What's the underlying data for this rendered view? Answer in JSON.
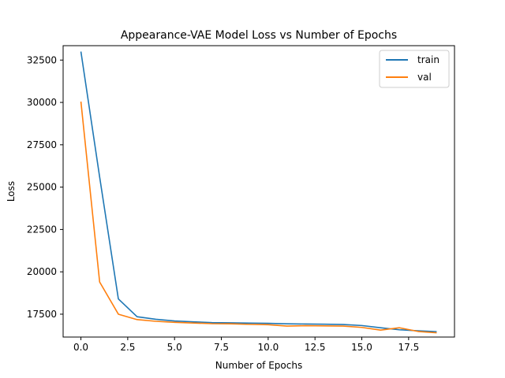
{
  "chart_data": {
    "type": "line",
    "title": "Appearance-VAE Model Loss vs Number of Epochs",
    "xlabel": "Number of Epochs",
    "ylabel": "Loss",
    "x": [
      0,
      1,
      2,
      3,
      4,
      5,
      6,
      7,
      8,
      9,
      10,
      11,
      12,
      13,
      14,
      15,
      16,
      17,
      18,
      19
    ],
    "xlim": [
      -0.95,
      19.95
    ],
    "ylim": [
      16150,
      33350
    ],
    "xticks": [
      0.0,
      2.5,
      5.0,
      7.5,
      10.0,
      12.5,
      15.0,
      17.5
    ],
    "xtick_labels": [
      "0.0",
      "2.5",
      "5.0",
      "7.5",
      "10.0",
      "12.5",
      "15.0",
      "17.5"
    ],
    "yticks": [
      17500,
      20000,
      22500,
      25000,
      27500,
      30000,
      32500
    ],
    "ytick_labels": [
      "17500",
      "20000",
      "22500",
      "25000",
      "27500",
      "30000",
      "32500"
    ],
    "grid": false,
    "legend_position": "top-right",
    "series": [
      {
        "name": "train",
        "color": "#1f77b4",
        "values": [
          33000,
          25600,
          18400,
          17350,
          17200,
          17100,
          17050,
          17000,
          16990,
          16970,
          16960,
          16930,
          16920,
          16910,
          16890,
          16830,
          16700,
          16580,
          16520,
          16470
        ]
      },
      {
        "name": "val",
        "color": "#ff7f0e",
        "values": [
          30050,
          19400,
          17500,
          17180,
          17080,
          17020,
          16980,
          16940,
          16930,
          16900,
          16880,
          16800,
          16820,
          16810,
          16800,
          16720,
          16560,
          16700,
          16480,
          16400
        ]
      }
    ]
  }
}
